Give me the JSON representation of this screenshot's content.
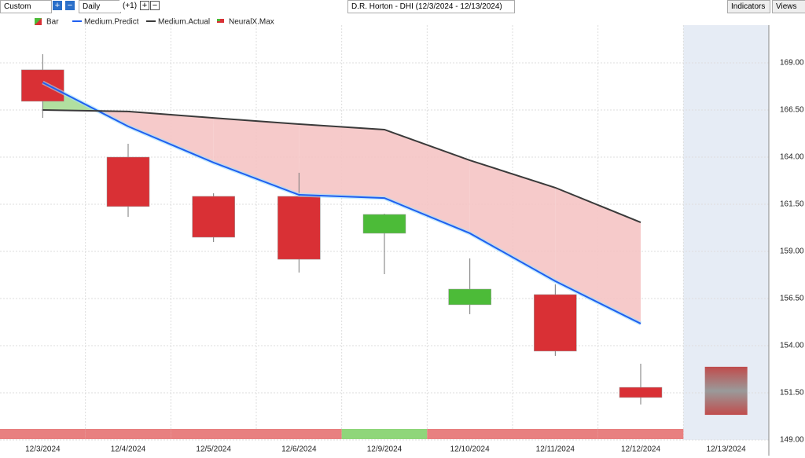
{
  "toolbar": {
    "range": "Custom",
    "interval": "Daily",
    "offset": "(+1)",
    "indicators": "Indicators",
    "views": "Views"
  },
  "chart_data": {
    "type": "candlestick",
    "title": "D.R. Horton - DHI (12/3/2024 - 12/13/2024)",
    "categories": [
      "12/3/2024",
      "12/4/2024",
      "12/5/2024",
      "12/6/2024",
      "12/9/2024",
      "12/10/2024",
      "12/11/2024",
      "12/12/2024",
      "12/13/2024"
    ],
    "bar_name": "Bar",
    "up_color": "#4cbb38",
    "down_color": "#d93035",
    "open": [
      168.63,
      164.0,
      161.92,
      161.92,
      159.96,
      156.17,
      156.71,
      151.79,
      null
    ],
    "high": [
      169.46,
      164.71,
      162.08,
      163.17,
      161.0,
      158.63,
      157.25,
      153.04,
      null
    ],
    "low": [
      166.08,
      160.83,
      159.5,
      157.88,
      157.79,
      155.67,
      153.46,
      150.88,
      null
    ],
    "close": [
      166.96,
      161.38,
      159.75,
      158.58,
      160.96,
      157.0,
      153.71,
      151.25,
      null
    ],
    "series": [
      {
        "name": "Medium.Predict",
        "color": "#1f5ff0",
        "values": [
          167.96,
          165.63,
          163.71,
          162.0,
          161.83,
          159.96,
          157.42,
          155.17,
          null
        ]
      },
      {
        "name": "Medium.Actual",
        "color": "#3a3a3a",
        "values": [
          166.5,
          166.42,
          166.08,
          165.75,
          165.46,
          163.83,
          162.38,
          160.54,
          null
        ]
      }
    ],
    "forecast": {
      "name": "NeuralX.Max",
      "category": 8,
      "high": 152.88,
      "low": 150.33
    },
    "signals": [
      "#e88080",
      "#e88080",
      "#e88080",
      "#e88080",
      "#8fd67a",
      "#e88080",
      "#e88080",
      "#e88080"
    ],
    "ylim": [
      149,
      171
    ],
    "yticks": [
      {
        "value": 149,
        "label": "149.00"
      },
      {
        "value": 151.5,
        "label": "151.50"
      },
      {
        "value": 154,
        "label": "154.00"
      },
      {
        "value": 156.5,
        "label": "156.50"
      },
      {
        "value": 159,
        "label": "159.00"
      },
      {
        "value": 161.5,
        "label": "161.50"
      },
      {
        "value": 164,
        "label": "164.00"
      },
      {
        "value": 166.5,
        "label": "166.50"
      },
      {
        "value": 169,
        "label": "169.00"
      }
    ],
    "grid": true
  }
}
